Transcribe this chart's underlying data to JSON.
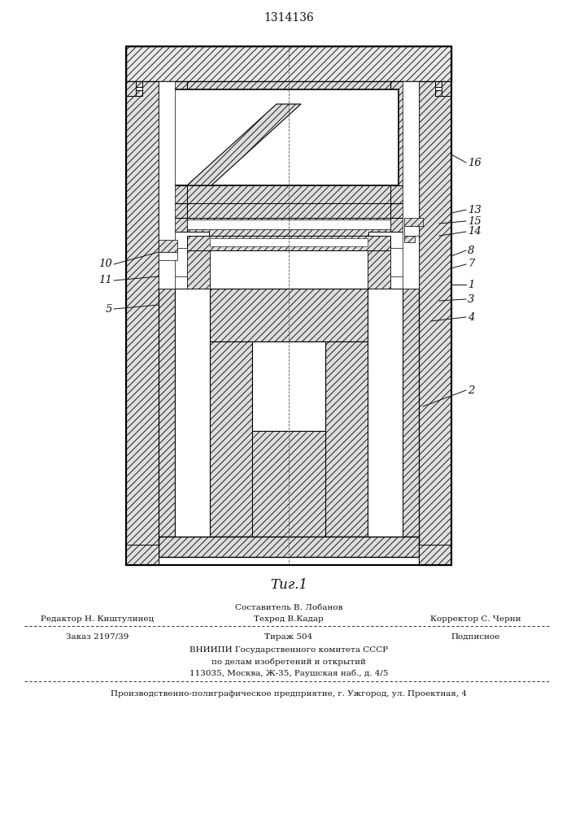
{
  "patent_number": "1314136",
  "fig_label": "Τиг.1",
  "bg_color": "#ffffff",
  "line_color": "#000000",
  "footer": {
    "sestavitel": "Составитель В. Лобанов",
    "redaktor": "Редактор Н. Киштулинец",
    "tehred": "Техред В.Кадар",
    "korrektor": "Корректор С. Черни",
    "zakaz": "Заказ 2197/39",
    "tirazh": "Тираж 504",
    "podpisnoe": "Подписное",
    "vnipi": "ВНИИПИ Государственного комитета СССР",
    "podelam": "по делам изобретений и открытий",
    "address": "113035, Москва, Ж-35, Раушская наб., д. 4/5",
    "proizv": "Производственно-полиграфическое предприятие, г. Ужгород, ул. Проектная, 4"
  }
}
